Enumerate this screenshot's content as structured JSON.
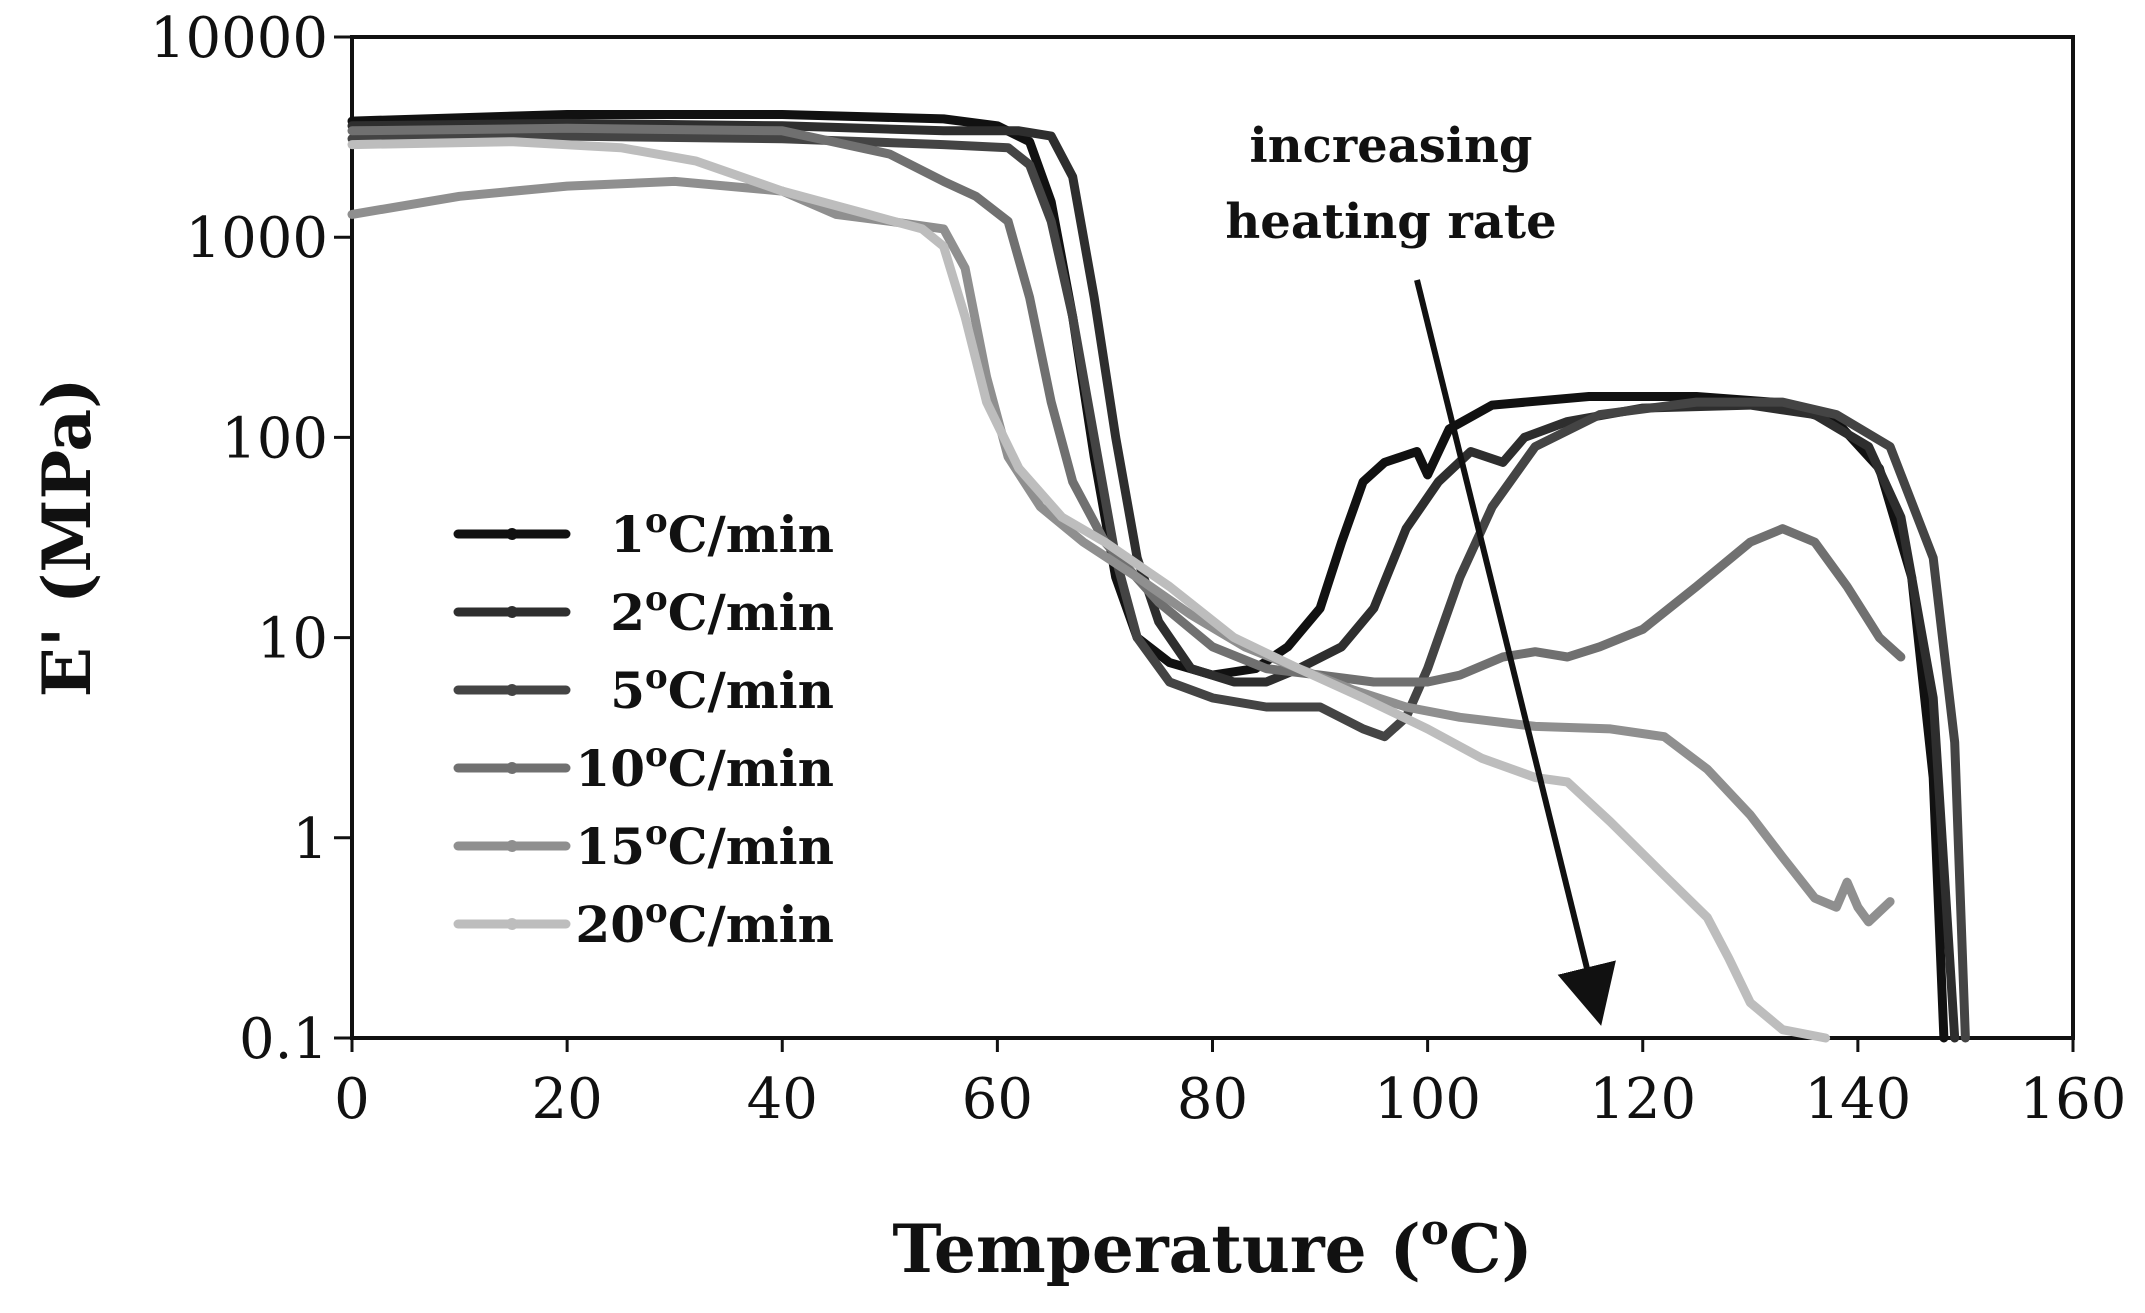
{
  "chart_data": {
    "type": "line",
    "xlabel": "Temperature (",
    "xlabel_sup": "o",
    "xlabel_tail": "C)",
    "ylabel": "E' (MPa)",
    "xlim": [
      0,
      160
    ],
    "ylim": [
      0.1,
      10000
    ],
    "yscale": "log",
    "x_ticks": [
      0,
      20,
      40,
      60,
      80,
      100,
      120,
      140,
      160
    ],
    "x_tick_labels": [
      "0",
      "20",
      "40",
      "60",
      "80",
      "100",
      "120",
      "140",
      "160"
    ],
    "y_ticks": [
      0.1,
      1,
      10,
      100,
      1000,
      10000
    ],
    "y_tick_labels": [
      "0.1",
      "1",
      "10",
      "100",
      "1000",
      "10000"
    ],
    "grid": false,
    "legend_position": "center-left",
    "annotation": {
      "line1": "increasing",
      "line2": "heating rate",
      "arrow_from": [
        99,
        400
      ],
      "arrow_to": [
        116,
        0.1
      ]
    },
    "series": [
      {
        "name_pre": "1",
        "name_sup": "o",
        "name_post": "C/min",
        "color": "#111111",
        "points": [
          [
            0,
            3800
          ],
          [
            20,
            4100
          ],
          [
            40,
            4100
          ],
          [
            55,
            3900
          ],
          [
            60,
            3600
          ],
          [
            63,
            3000
          ],
          [
            65,
            1500
          ],
          [
            67,
            400
          ],
          [
            69,
            80
          ],
          [
            71,
            20
          ],
          [
            73,
            10
          ],
          [
            76,
            7.5
          ],
          [
            80,
            6.5
          ],
          [
            84,
            7
          ],
          [
            87,
            9
          ],
          [
            90,
            14
          ],
          [
            92,
            30
          ],
          [
            94,
            60
          ],
          [
            96,
            75
          ],
          [
            99,
            85
          ],
          [
            100,
            65
          ],
          [
            102,
            110
          ],
          [
            106,
            145
          ],
          [
            115,
            160
          ],
          [
            125,
            160
          ],
          [
            132,
            150
          ],
          [
            138,
            120
          ],
          [
            142,
            70
          ],
          [
            145,
            20
          ],
          [
            147,
            2
          ],
          [
            148,
            0.1
          ]
        ]
      },
      {
        "name_pre": "2",
        "name_sup": "o",
        "name_post": "C/min",
        "color": "#2e2e2e",
        "points": [
          [
            0,
            3600
          ],
          [
            20,
            3700
          ],
          [
            40,
            3600
          ],
          [
            55,
            3400
          ],
          [
            62,
            3400
          ],
          [
            65,
            3200
          ],
          [
            67,
            2000
          ],
          [
            69,
            500
          ],
          [
            71,
            100
          ],
          [
            73,
            25
          ],
          [
            75,
            12
          ],
          [
            78,
            7
          ],
          [
            82,
            6
          ],
          [
            85,
            6
          ],
          [
            88,
            7
          ],
          [
            92,
            9
          ],
          [
            95,
            14
          ],
          [
            98,
            35
          ],
          [
            101,
            60
          ],
          [
            104,
            85
          ],
          [
            107,
            75
          ],
          [
            109,
            100
          ],
          [
            113,
            120
          ],
          [
            120,
            140
          ],
          [
            130,
            145
          ],
          [
            136,
            130
          ],
          [
            141,
            90
          ],
          [
            144,
            40
          ],
          [
            147,
            5
          ],
          [
            149,
            0.1
          ]
        ]
      },
      {
        "name_pre": "5",
        "name_sup": "o",
        "name_post": "C/min",
        "color": "#444444",
        "points": [
          [
            0,
            3100
          ],
          [
            20,
            3200
          ],
          [
            40,
            3100
          ],
          [
            55,
            2900
          ],
          [
            61,
            2800
          ],
          [
            63,
            2300
          ],
          [
            65,
            1200
          ],
          [
            67,
            400
          ],
          [
            69,
            100
          ],
          [
            71,
            25
          ],
          [
            73,
            10
          ],
          [
            76,
            6
          ],
          [
            80,
            5
          ],
          [
            85,
            4.5
          ],
          [
            90,
            4.5
          ],
          [
            94,
            3.5
          ],
          [
            96,
            3.2
          ],
          [
            98,
            4
          ],
          [
            100,
            7
          ],
          [
            103,
            20
          ],
          [
            106,
            45
          ],
          [
            110,
            90
          ],
          [
            116,
            130
          ],
          [
            125,
            150
          ],
          [
            133,
            150
          ],
          [
            138,
            130
          ],
          [
            143,
            90
          ],
          [
            147,
            25
          ],
          [
            149,
            3
          ],
          [
            150,
            0.1
          ]
        ]
      },
      {
        "name_pre": "10",
        "name_sup": "o",
        "name_post": "C/min",
        "color": "#707070",
        "points": [
          [
            0,
            3400
          ],
          [
            20,
            3500
          ],
          [
            40,
            3400
          ],
          [
            50,
            2600
          ],
          [
            55,
            1900
          ],
          [
            58,
            1600
          ],
          [
            61,
            1200
          ],
          [
            63,
            500
          ],
          [
            65,
            150
          ],
          [
            67,
            60
          ],
          [
            70,
            30
          ],
          [
            75,
            15
          ],
          [
            80,
            9
          ],
          [
            85,
            7
          ],
          [
            90,
            6.5
          ],
          [
            95,
            6
          ],
          [
            100,
            6
          ],
          [
            103,
            6.5
          ],
          [
            107,
            8
          ],
          [
            110,
            8.5
          ],
          [
            113,
            8
          ],
          [
            116,
            9
          ],
          [
            120,
            11
          ],
          [
            125,
            18
          ],
          [
            130,
            30
          ],
          [
            133,
            35
          ],
          [
            136,
            30
          ],
          [
            139,
            18
          ],
          [
            142,
            10
          ],
          [
            144,
            8
          ]
        ]
      },
      {
        "name_pre": "15",
        "name_sup": "o",
        "name_post": "C/min",
        "color": "#8f8f8f",
        "points": [
          [
            0,
            1300
          ],
          [
            10,
            1600
          ],
          [
            20,
            1800
          ],
          [
            30,
            1900
          ],
          [
            40,
            1700
          ],
          [
            45,
            1300
          ],
          [
            50,
            1200
          ],
          [
            55,
            1100
          ],
          [
            57,
            700
          ],
          [
            59,
            200
          ],
          [
            61,
            80
          ],
          [
            64,
            45
          ],
          [
            68,
            30
          ],
          [
            73,
            20
          ],
          [
            78,
            13
          ],
          [
            83,
            9
          ],
          [
            88,
            7
          ],
          [
            93,
            5.5
          ],
          [
            98,
            4.5
          ],
          [
            103,
            4
          ],
          [
            110,
            3.6
          ],
          [
            117,
            3.5
          ],
          [
            122,
            3.2
          ],
          [
            126,
            2.2
          ],
          [
            130,
            1.3
          ],
          [
            133,
            0.8
          ],
          [
            136,
            0.5
          ],
          [
            138,
            0.45
          ],
          [
            139,
            0.6
          ],
          [
            140,
            0.45
          ],
          [
            141,
            0.38
          ],
          [
            143,
            0.48
          ]
        ]
      },
      {
        "name_pre": "20",
        "name_sup": "o",
        "name_post": "C/min",
        "color": "#bdbdbd",
        "points": [
          [
            0,
            2900
          ],
          [
            15,
            3000
          ],
          [
            25,
            2800
          ],
          [
            32,
            2400
          ],
          [
            40,
            1700
          ],
          [
            48,
            1300
          ],
          [
            53,
            1100
          ],
          [
            55,
            900
          ],
          [
            57,
            400
          ],
          [
            59,
            150
          ],
          [
            62,
            70
          ],
          [
            66,
            40
          ],
          [
            70,
            30
          ],
          [
            76,
            18
          ],
          [
            82,
            10
          ],
          [
            88,
            7
          ],
          [
            94,
            5
          ],
          [
            100,
            3.5
          ],
          [
            105,
            2.5
          ],
          [
            110,
            2.0
          ],
          [
            113,
            1.9
          ],
          [
            117,
            1.2
          ],
          [
            122,
            0.65
          ],
          [
            126,
            0.4
          ],
          [
            128,
            0.25
          ],
          [
            130,
            0.15
          ],
          [
            133,
            0.11
          ],
          [
            137,
            0.1
          ]
        ]
      }
    ]
  }
}
